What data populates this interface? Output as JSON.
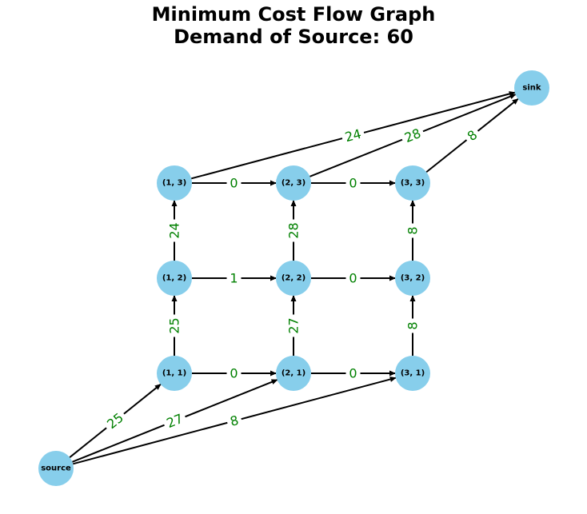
{
  "title": {
    "line1": "Minimum Cost Flow Graph",
    "line2": "Demand of Source: 60"
  },
  "colors": {
    "node_fill": "#87CEEB",
    "edge": "#000000",
    "edge_label": "#008000",
    "background": "#ffffff"
  },
  "nodes": [
    {
      "id": "source",
      "label": "source"
    },
    {
      "id": "sink",
      "label": "sink"
    },
    {
      "id": "1,1",
      "label": "(1, 1)"
    },
    {
      "id": "1,2",
      "label": "(1, 2)"
    },
    {
      "id": "1,3",
      "label": "(1, 3)"
    },
    {
      "id": "2,1",
      "label": "(2, 1)"
    },
    {
      "id": "2,2",
      "label": "(2, 2)"
    },
    {
      "id": "2,3",
      "label": "(2, 3)"
    },
    {
      "id": "3,1",
      "label": "(3, 1)"
    },
    {
      "id": "3,2",
      "label": "(3, 2)"
    },
    {
      "id": "3,3",
      "label": "(3, 3)"
    }
  ],
  "edges": [
    {
      "from": "source",
      "to": "1,1",
      "flow": "25"
    },
    {
      "from": "source",
      "to": "2,1",
      "flow": "27"
    },
    {
      "from": "source",
      "to": "3,1",
      "flow": "8"
    },
    {
      "from": "1,1",
      "to": "2,1",
      "flow": "0"
    },
    {
      "from": "2,1",
      "to": "3,1",
      "flow": "0"
    },
    {
      "from": "1,2",
      "to": "2,2",
      "flow": "1"
    },
    {
      "from": "2,2",
      "to": "3,2",
      "flow": "0"
    },
    {
      "from": "1,3",
      "to": "2,3",
      "flow": "0"
    },
    {
      "from": "2,3",
      "to": "3,3",
      "flow": "0"
    },
    {
      "from": "1,1",
      "to": "1,2",
      "flow": "25"
    },
    {
      "from": "1,2",
      "to": "1,3",
      "flow": "24"
    },
    {
      "from": "2,1",
      "to": "2,2",
      "flow": "27"
    },
    {
      "from": "2,2",
      "to": "2,3",
      "flow": "28"
    },
    {
      "from": "3,1",
      "to": "3,2",
      "flow": "8"
    },
    {
      "from": "3,2",
      "to": "3,3",
      "flow": "8"
    },
    {
      "from": "1,3",
      "to": "sink",
      "flow": "24"
    },
    {
      "from": "2,3",
      "to": "sink",
      "flow": "28"
    },
    {
      "from": "3,3",
      "to": "sink",
      "flow": "8"
    }
  ]
}
